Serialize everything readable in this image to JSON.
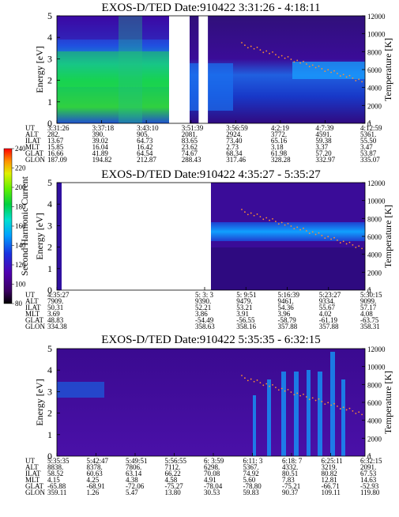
{
  "colorbar": {
    "label": "Second Harmonic Current",
    "ticks": [
      "80",
      "100",
      "120",
      "140",
      "160",
      "180",
      "200",
      "220",
      "240"
    ]
  },
  "row_labels": [
    "UT",
    "ALT",
    "ILAT",
    "MLT",
    "GLAT",
    "GLON"
  ],
  "chart_data": [
    {
      "type": "heatmap",
      "title": "EXOS-D/TED   Date:910422  3:31:26 - 4:18:11",
      "ylabel": "Energy [eV]",
      "y2label": "Temperature [K]",
      "ylim": [
        0,
        5
      ],
      "y2lim": [
        0,
        12000
      ],
      "yticks": [
        "0",
        "1",
        "2",
        "3",
        "4",
        "5"
      ],
      "y2ticks": [
        "0",
        "2000",
        "4000",
        "6000",
        "8000",
        "10000",
        "12000"
      ],
      "gap": [
        0.46,
        0.49
      ],
      "columns": [
        [
          "3:31:26",
          "282.",
          "13.67",
          "15.85",
          "16.66",
          "187.09"
        ],
        [
          "3:37:18",
          "390.",
          "39.02",
          "16.04",
          "41.89",
          "194.82"
        ],
        [
          "3:43:10",
          "905.",
          "64.73",
          "16.42",
          "64.54",
          "212.87"
        ],
        [
          "3:51:39",
          "2081.",
          "83.65",
          "23.62",
          "74.67",
          "288.43"
        ],
        [
          "3:56:59",
          "2924.",
          "73.40",
          "2.73",
          "68.34",
          "317.46"
        ],
        [
          "4:2:19",
          "3772.",
          "65.16",
          "3.18",
          "61.98",
          "328.28"
        ],
        [
          "4:7:39",
          "4591.",
          "59.38",
          "3.37",
          "57.20",
          "332.97"
        ],
        [
          "4:12:59",
          "5361.",
          "55.50",
          "3.47",
          "53.87",
          "335.07"
        ]
      ]
    },
    {
      "type": "heatmap",
      "title": "EXOS-D/TED   Date:910422  4:35:27 - 5:35:27",
      "ylabel": "Energy [eV]",
      "y2label": "Temperature [K]",
      "ylim": [
        0,
        5
      ],
      "y2lim": [
        0,
        12000
      ],
      "yticks": [
        "0",
        "1",
        "2",
        "3",
        "4",
        "5"
      ],
      "y2ticks": [
        "0",
        "2000",
        "4000",
        "6000",
        "8000",
        "10000",
        "12000"
      ],
      "gap": [
        0.05,
        0.5
      ],
      "columns": [
        [
          "4:35:27",
          "7909.",
          "50.31",
          "3.69",
          "48.83",
          "334.38"
        ],
        [
          "5: 3: 3",
          "9390.",
          "52.21",
          "3.86",
          "-54.49",
          "358.63"
        ],
        [
          "5: 9:51",
          "9479.",
          "53.21",
          "3.91",
          "-56.55",
          "358.16"
        ],
        [
          "5:16:39",
          "9461.",
          "54.36",
          "3.96",
          "-58.79",
          "357.88"
        ],
        [
          "5:23:27",
          "9334.",
          "55.67",
          "4.02",
          "-61.19",
          "357.88"
        ],
        [
          "5:30:15",
          "9099.",
          "57.17",
          "4.08",
          "-63.75",
          "358.31"
        ]
      ]
    },
    {
      "type": "heatmap",
      "title": "EXOS-D/TED   Date:910422  5:35:35 - 6:32:15",
      "ylabel": "Energy [eV]",
      "y2label": "Temperature [K]",
      "ylim": [
        0,
        5
      ],
      "y2lim": [
        0,
        12000
      ],
      "yticks": [
        "0",
        "1",
        "2",
        "3",
        "4",
        "5"
      ],
      "y2ticks": [
        "0",
        "2000",
        "4000",
        "6000",
        "8000",
        "10000",
        "12000"
      ],
      "gap": null,
      "columns": [
        [
          "5:35:35",
          "8838.",
          "58.52",
          "4.15",
          "-65.88",
          "359.11"
        ],
        [
          "5:42:47",
          "8378.",
          "60.63",
          "4.25",
          "-68.91",
          "1.26"
        ],
        [
          "5:49:51",
          "7806.",
          "63.14",
          "4.38",
          "-72.06",
          "5.47"
        ],
        [
          "5:56:55",
          "7112.",
          "66.22",
          "4.58",
          "-75.27",
          "13.80"
        ],
        [
          "6: 3:59",
          "6298.",
          "70.08",
          "4.91",
          "-78.04",
          "30.53"
        ],
        [
          "6:11: 3",
          "5367.",
          "74.92",
          "5.60",
          "-78.80",
          "59.83"
        ],
        [
          "6:18: 7",
          "4332.",
          "80.51",
          "7.83",
          "-75.21",
          "90.37"
        ],
        [
          "6:25:11",
          "3219.",
          "80.82",
          "12.81",
          "-66.71",
          "109.11"
        ],
        [
          "6:32:15",
          "2091.",
          "67.53",
          "14.63",
          "-52.93",
          "119.80"
        ]
      ]
    }
  ]
}
